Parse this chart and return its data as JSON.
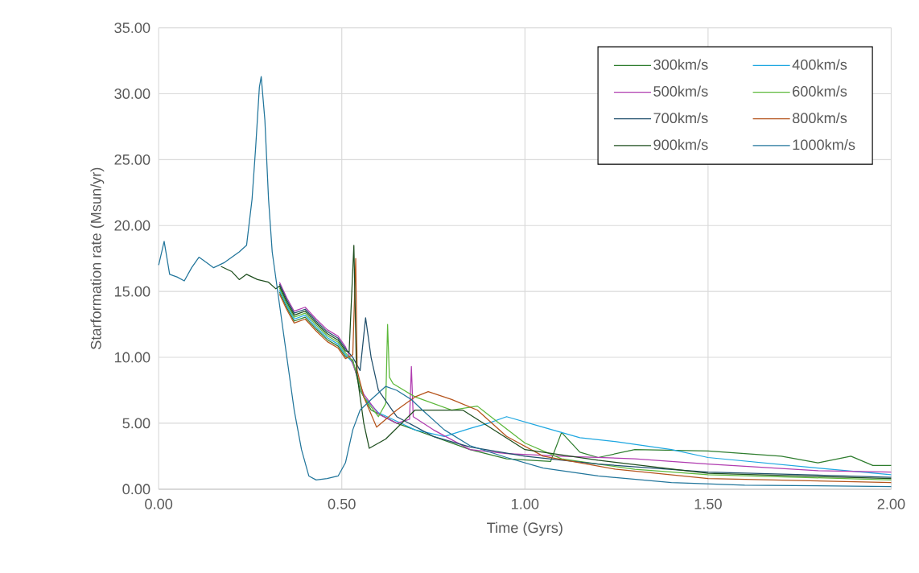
{
  "chart_data": {
    "type": "line",
    "xlabel": "Time (Gyrs)",
    "ylabel": "Starformation rate (Msun/yr)",
    "xlim": [
      0,
      2
    ],
    "ylim": [
      0,
      35
    ],
    "xticks": [
      {
        "value": 0,
        "label": "0.00"
      },
      {
        "value": 0.5,
        "label": "0.50"
      },
      {
        "value": 1,
        "label": "1.00"
      },
      {
        "value": 1.5,
        "label": "1.50"
      },
      {
        "value": 2,
        "label": "2.00"
      }
    ],
    "yticks": [
      {
        "value": 0,
        "label": "0.00"
      },
      {
        "value": 5,
        "label": "5.00"
      },
      {
        "value": 10,
        "label": "10.00"
      },
      {
        "value": 15,
        "label": "15.00"
      },
      {
        "value": 20,
        "label": "20.00"
      },
      {
        "value": 25,
        "label": "25.00"
      },
      {
        "value": 30,
        "label": "30.00"
      },
      {
        "value": 35,
        "label": "35.00"
      }
    ],
    "grid": true,
    "legend": "top right",
    "marker": "none",
    "line_style": "solid",
    "series": [
      {
        "name": "300km/s",
        "color": "#2e7d2e",
        "x": [
          0.33,
          0.35,
          0.37,
          0.4,
          0.43,
          0.46,
          0.49,
          0.51,
          0.53,
          0.55,
          0.58,
          0.65,
          0.75,
          0.85,
          0.95,
          1.07,
          1.1,
          1.15,
          1.2,
          1.3,
          1.5,
          1.7,
          1.8,
          1.89,
          1.95,
          2.0
        ],
        "values": [
          14.95,
          13.75,
          12.75,
          13.05,
          12.15,
          11.35,
          10.85,
          10.05,
          9.8,
          7.5,
          6.0,
          5.0,
          4.0,
          3.0,
          2.3,
          2.1,
          4.3,
          2.8,
          2.4,
          3.0,
          2.9,
          2.5,
          2.0,
          2.5,
          1.8,
          1.8
        ]
      },
      {
        "name": "400km/s",
        "color": "#1ea7e1",
        "x": [
          0.33,
          0.35,
          0.37,
          0.4,
          0.43,
          0.46,
          0.49,
          0.51,
          0.53,
          0.56,
          0.6,
          0.7,
          0.78,
          0.85,
          0.9,
          0.95,
          1.05,
          1.15,
          1.25,
          1.4,
          1.5,
          1.8,
          2.0
        ],
        "values": [
          15.1,
          13.9,
          12.9,
          13.2,
          12.3,
          11.5,
          11.0,
          10.2,
          9.6,
          7.0,
          5.8,
          4.5,
          4.0,
          4.6,
          5.0,
          5.5,
          4.7,
          3.9,
          3.6,
          3.0,
          2.4,
          1.6,
          1.1
        ]
      },
      {
        "name": "500km/s",
        "color": "#b03cb0",
        "x": [
          0.33,
          0.35,
          0.37,
          0.4,
          0.43,
          0.46,
          0.49,
          0.51,
          0.53,
          0.56,
          0.6,
          0.65,
          0.685,
          0.69,
          0.695,
          0.75,
          0.85,
          0.95,
          1.1,
          1.3,
          1.5,
          1.8,
          2.0
        ],
        "values": [
          15.7,
          14.5,
          13.5,
          13.8,
          12.9,
          12.1,
          11.6,
          10.8,
          9.5,
          7.2,
          5.7,
          5.0,
          5.3,
          9.3,
          5.5,
          4.5,
          3.0,
          2.7,
          2.5,
          2.3,
          1.9,
          1.4,
          1.3
        ]
      },
      {
        "name": "600km/s",
        "color": "#5cb83a",
        "x": [
          0.33,
          0.35,
          0.37,
          0.4,
          0.43,
          0.46,
          0.49,
          0.51,
          0.53,
          0.56,
          0.6,
          0.62,
          0.625,
          0.63,
          0.64,
          0.7,
          0.8,
          0.87,
          0.93,
          1.0,
          1.1,
          1.3,
          1.5,
          2.0
        ],
        "values": [
          15.25,
          14.05,
          13.05,
          13.35,
          12.45,
          11.65,
          11.15,
          10.35,
          9.7,
          7.0,
          5.5,
          6.5,
          12.5,
          8.5,
          8.0,
          7.0,
          6.0,
          6.3,
          5.0,
          3.5,
          2.3,
          1.5,
          1.1,
          0.7
        ]
      },
      {
        "name": "700km/s",
        "color": "#1f4e6b",
        "x": [
          0.33,
          0.35,
          0.37,
          0.4,
          0.43,
          0.46,
          0.49,
          0.51,
          0.53,
          0.55,
          0.565,
          0.58,
          0.6,
          0.65,
          0.75,
          0.85,
          1.0,
          1.2,
          1.5,
          2.0
        ],
        "values": [
          15.55,
          14.35,
          13.35,
          13.65,
          12.75,
          11.95,
          11.45,
          10.65,
          10.0,
          9.0,
          13.0,
          10.0,
          7.5,
          5.5,
          4.0,
          3.2,
          2.5,
          1.9,
          1.3,
          0.9
        ]
      },
      {
        "name": "800km/s",
        "color": "#b5541c",
        "x": [
          0.33,
          0.35,
          0.37,
          0.4,
          0.43,
          0.46,
          0.49,
          0.51,
          0.53,
          0.538,
          0.542,
          0.56,
          0.595,
          0.65,
          0.7,
          0.736,
          0.8,
          0.87,
          0.95,
          1.05,
          1.25,
          1.5,
          2.0
        ],
        "values": [
          14.8,
          13.6,
          12.6,
          12.9,
          12.0,
          11.2,
          10.7,
          9.9,
          10.2,
          17.5,
          9.0,
          7.0,
          4.7,
          6.0,
          7.0,
          7.4,
          6.8,
          6.0,
          4.0,
          2.5,
          1.5,
          0.8,
          0.5
        ]
      },
      {
        "name": "900km/s",
        "color": "#1d4d1d",
        "x": [
          0.17,
          0.2,
          0.22,
          0.24,
          0.27,
          0.3,
          0.32,
          0.33,
          0.35,
          0.37,
          0.4,
          0.43,
          0.46,
          0.49,
          0.51,
          0.52,
          0.533,
          0.54,
          0.56,
          0.575,
          0.62,
          0.7,
          0.83,
          1.0,
          1.2,
          1.5,
          2.0
        ],
        "values": [
          16.9,
          16.5,
          15.9,
          16.3,
          15.9,
          15.7,
          15.2,
          15.4,
          14.2,
          13.2,
          13.5,
          12.6,
          11.8,
          11.3,
          10.5,
          10.4,
          18.5,
          9.0,
          5.0,
          3.1,
          3.8,
          6.0,
          6.0,
          3.0,
          2.2,
          1.2,
          0.8
        ]
      },
      {
        "name": "1000km/s",
        "color": "#21759b",
        "x": [
          0,
          0.015,
          0.03,
          0.05,
          0.07,
          0.09,
          0.11,
          0.13,
          0.15,
          0.18,
          0.22,
          0.24,
          0.255,
          0.265,
          0.275,
          0.28,
          0.29,
          0.3,
          0.31,
          0.33,
          0.35,
          0.37,
          0.39,
          0.41,
          0.43,
          0.46,
          0.49,
          0.51,
          0.53,
          0.55,
          0.58,
          0.62,
          0.65,
          0.69,
          0.72,
          0.78,
          0.85,
          0.95,
          1.05,
          1.2,
          1.4,
          1.6,
          2.0
        ],
        "values": [
          17.0,
          18.8,
          16.3,
          16.1,
          15.8,
          16.8,
          17.6,
          17.2,
          16.8,
          17.2,
          18.0,
          18.5,
          22,
          26,
          30.5,
          31.3,
          28,
          22,
          18,
          14,
          10,
          6,
          3,
          1.0,
          0.7,
          0.8,
          1.0,
          2.0,
          4.5,
          6.0,
          6.8,
          7.8,
          7.5,
          6.8,
          6.0,
          4.5,
          3.3,
          2.4,
          1.6,
          1.0,
          0.5,
          0.3,
          0.2
        ]
      }
    ]
  }
}
